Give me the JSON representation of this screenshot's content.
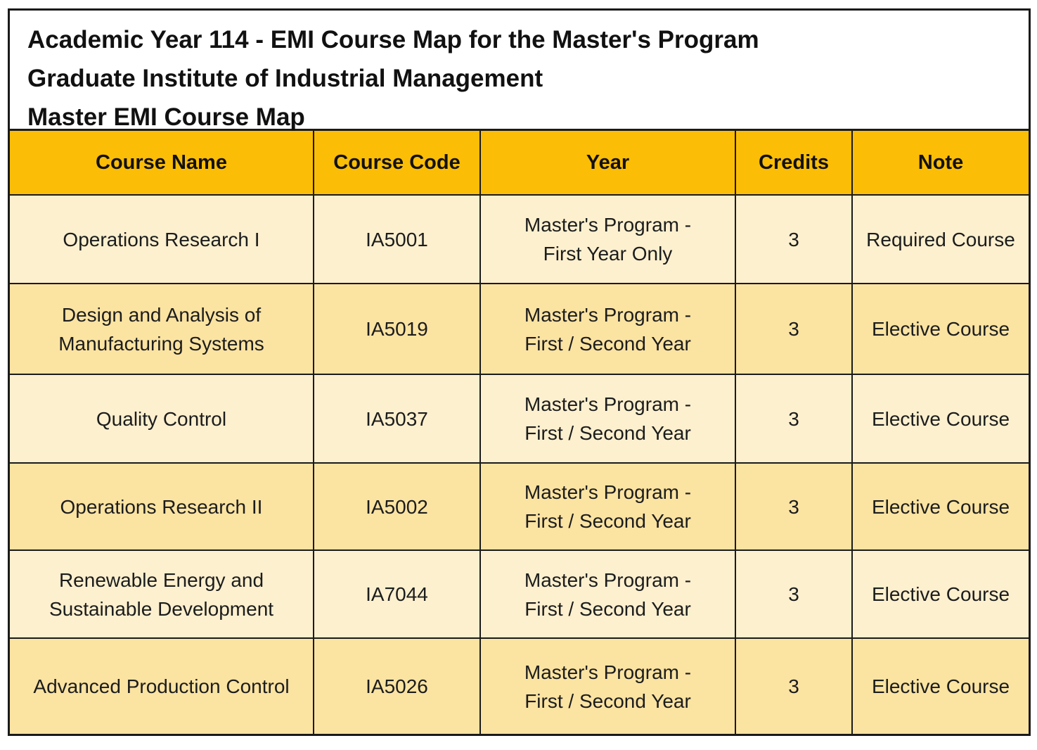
{
  "title": {
    "line1": "Academic Year 114 - EMI Course Map for the Master's Program",
    "line2": "Graduate Institute of Industrial Management",
    "line3": "Master EMI Course Map"
  },
  "colors": {
    "header_background": "#fbbd06",
    "row_light": "#fdf0cf",
    "row_dark": "#fbe3a2",
    "border": "#1a1a1a"
  },
  "table": {
    "headers": [
      "Course Name",
      "Course Code",
      "Year",
      "Credits",
      "Note"
    ],
    "rows": [
      {
        "course_name": "Operations Research I",
        "course_code": "IA5001",
        "year": "Master's Program -\nFirst Year Only",
        "credits": "3",
        "note": "Required Course"
      },
      {
        "course_name": "Design and Analysis of\nManufacturing Systems",
        "course_code": "IA5019",
        "year": "Master's Program -\nFirst / Second Year",
        "credits": "3",
        "note": "Elective Course"
      },
      {
        "course_name": "Quality Control",
        "course_code": "IA5037",
        "year": "Master's Program -\nFirst / Second Year",
        "credits": "3",
        "note": "Elective Course"
      },
      {
        "course_name": "Operations Research II",
        "course_code": "IA5002",
        "year": "Master's Program -\nFirst / Second Year",
        "credits": "3",
        "note": "Elective Course"
      },
      {
        "course_name": "Renewable Energy and\nSustainable Development",
        "course_code": "IA7044",
        "year": "Master's Program -\nFirst / Second Year",
        "credits": "3",
        "note": "Elective Course"
      },
      {
        "course_name": "Advanced Production Control",
        "course_code": "IA5026",
        "year": "Master's Program -\nFirst / Second Year",
        "credits": "3",
        "note": "Elective Course"
      }
    ]
  }
}
